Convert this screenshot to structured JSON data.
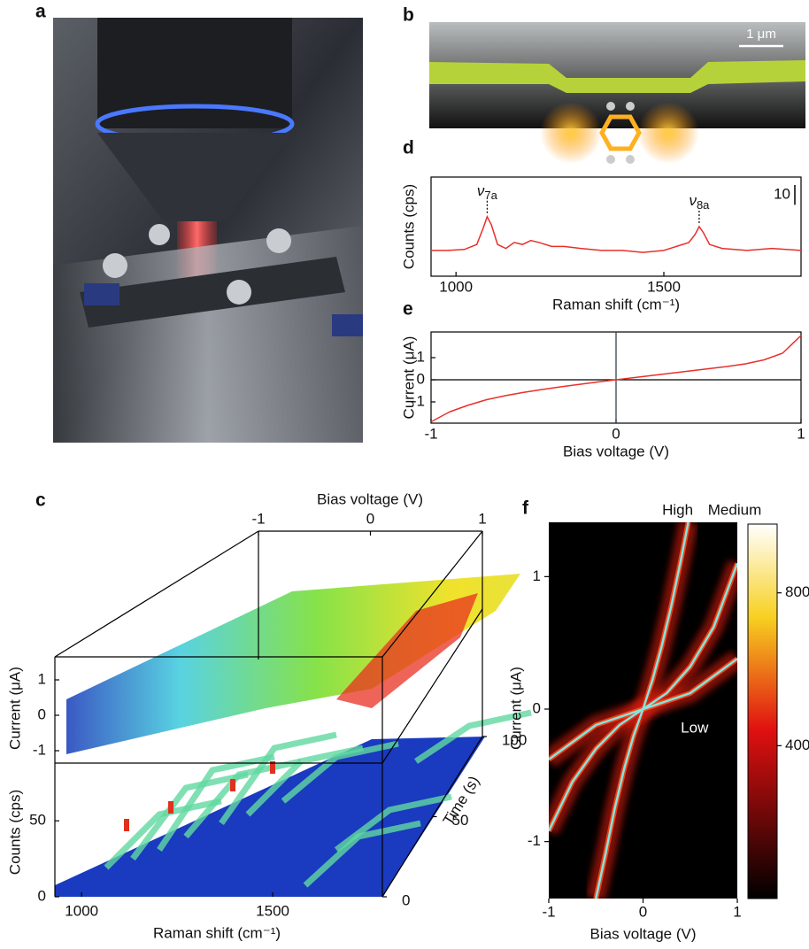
{
  "panel_labels": [
    "a",
    "b",
    "c",
    "d",
    "e",
    "f"
  ],
  "b_scale_bar": "1 μm",
  "chart_data": [
    {
      "type": "line",
      "xlabel": "Raman shift (cm⁻¹)",
      "ylabel": "Counts (cps)",
      "x": [
        940,
        980,
        1020,
        1050,
        1065,
        1075,
        1085,
        1100,
        1120,
        1140,
        1160,
        1180,
        1200,
        1230,
        1260,
        1300,
        1350,
        1400,
        1450,
        1500,
        1530,
        1560,
        1575,
        1585,
        1595,
        1610,
        1640,
        1700,
        1760,
        1830
      ],
      "series": [
        {
          "color": "#e8302a",
          "values": [
            13,
            13,
            13.5,
            16,
            24,
            30,
            26,
            16,
            14,
            17,
            16,
            18,
            17,
            15,
            15,
            14,
            13,
            13,
            12,
            13,
            15,
            17,
            21,
            25,
            22,
            16,
            14,
            13,
            14,
            13
          ]
        }
      ],
      "xlim": [
        940,
        1830
      ],
      "xticks": [
        1000,
        1500
      ],
      "ylim": [
        0,
        50
      ],
      "annotations": [
        {
          "symbol": "ν",
          "sub": "7a",
          "x": 1075
        },
        {
          "symbol": "ν",
          "sub": "8a",
          "x": 1585
        }
      ],
      "scale_bar": 10
    },
    {
      "type": "line",
      "xlabel": "Bias voltage (V)",
      "ylabel": "Current (μA)",
      "x": [
        -1,
        -0.9,
        -0.8,
        -0.7,
        -0.6,
        -0.5,
        -0.4,
        -0.3,
        -0.2,
        -0.1,
        0,
        0.1,
        0.2,
        0.3,
        0.4,
        0.5,
        0.6,
        0.7,
        0.8,
        0.9,
        1
      ],
      "series": [
        {
          "color": "#e8302a",
          "values": [
            -1.9,
            -1.45,
            -1.15,
            -0.9,
            -0.72,
            -0.57,
            -0.44,
            -0.32,
            -0.21,
            -0.1,
            0,
            0.1,
            0.2,
            0.3,
            0.4,
            0.5,
            0.6,
            0.72,
            0.9,
            1.2,
            2.0
          ]
        }
      ],
      "xlim": [
        -1,
        1
      ],
      "xticks": [
        -1,
        0,
        1
      ],
      "ylim": [
        -1.96,
        2.16
      ],
      "yticks": [
        1,
        0,
        -1
      ],
      "zero_lines": true
    },
    {
      "type": "surface3d",
      "xlabel": "Raman shift (cm⁻¹)",
      "ylabel": "Counts (cps)",
      "zlabel": "Current (μA)",
      "top_xlabel": "Bias voltage (V)",
      "depth_label": "Time (s)",
      "xlim": [
        930,
        1787
      ],
      "xticks": [
        1000,
        1500
      ],
      "ylim": [
        0,
        88
      ],
      "yticks": [
        0,
        50
      ],
      "zlim": [
        -1.35,
        1.65
      ],
      "zticks": [
        1,
        0,
        -1
      ],
      "top_xlim": [
        -1,
        1
      ],
      "top_xticks": [
        -1,
        0,
        1
      ],
      "depth_lim": [
        0,
        100
      ],
      "depth_ticks": [
        0,
        50,
        100
      ]
    },
    {
      "type": "heatmap",
      "xlabel": "Bias voltage (V)",
      "ylabel": "Current (μA)",
      "xlim": [
        -1,
        1
      ],
      "xticks": [
        -1,
        0,
        1
      ],
      "ylim": [
        -1.43,
        1.41
      ],
      "yticks": [
        1,
        0,
        -1
      ],
      "curve_color": "#86e3dc",
      "series": [
        {
          "name": "High",
          "x": [
            -0.5,
            -0.4,
            -0.3,
            -0.2,
            -0.1,
            0,
            0.1,
            0.2,
            0.3,
            0.4,
            0.48
          ],
          "values": [
            -1.43,
            -1.1,
            -0.75,
            -0.45,
            -0.2,
            0,
            0.22,
            0.48,
            0.78,
            1.12,
            1.41
          ]
        },
        {
          "name": "Medium",
          "x": [
            -1,
            -0.75,
            -0.5,
            -0.25,
            0,
            0.25,
            0.5,
            0.75,
            1
          ],
          "values": [
            -0.92,
            -0.55,
            -0.3,
            -0.12,
            0,
            0.12,
            0.32,
            0.62,
            1.1
          ]
        },
        {
          "name": "Low",
          "x": [
            -1,
            -0.5,
            0,
            0.5,
            1
          ],
          "values": [
            -0.38,
            -0.12,
            0,
            0.12,
            0.38
          ]
        }
      ],
      "colorbar": {
        "clim": [
          0,
          980
        ],
        "ticks": [
          400,
          800
        ]
      }
    }
  ]
}
